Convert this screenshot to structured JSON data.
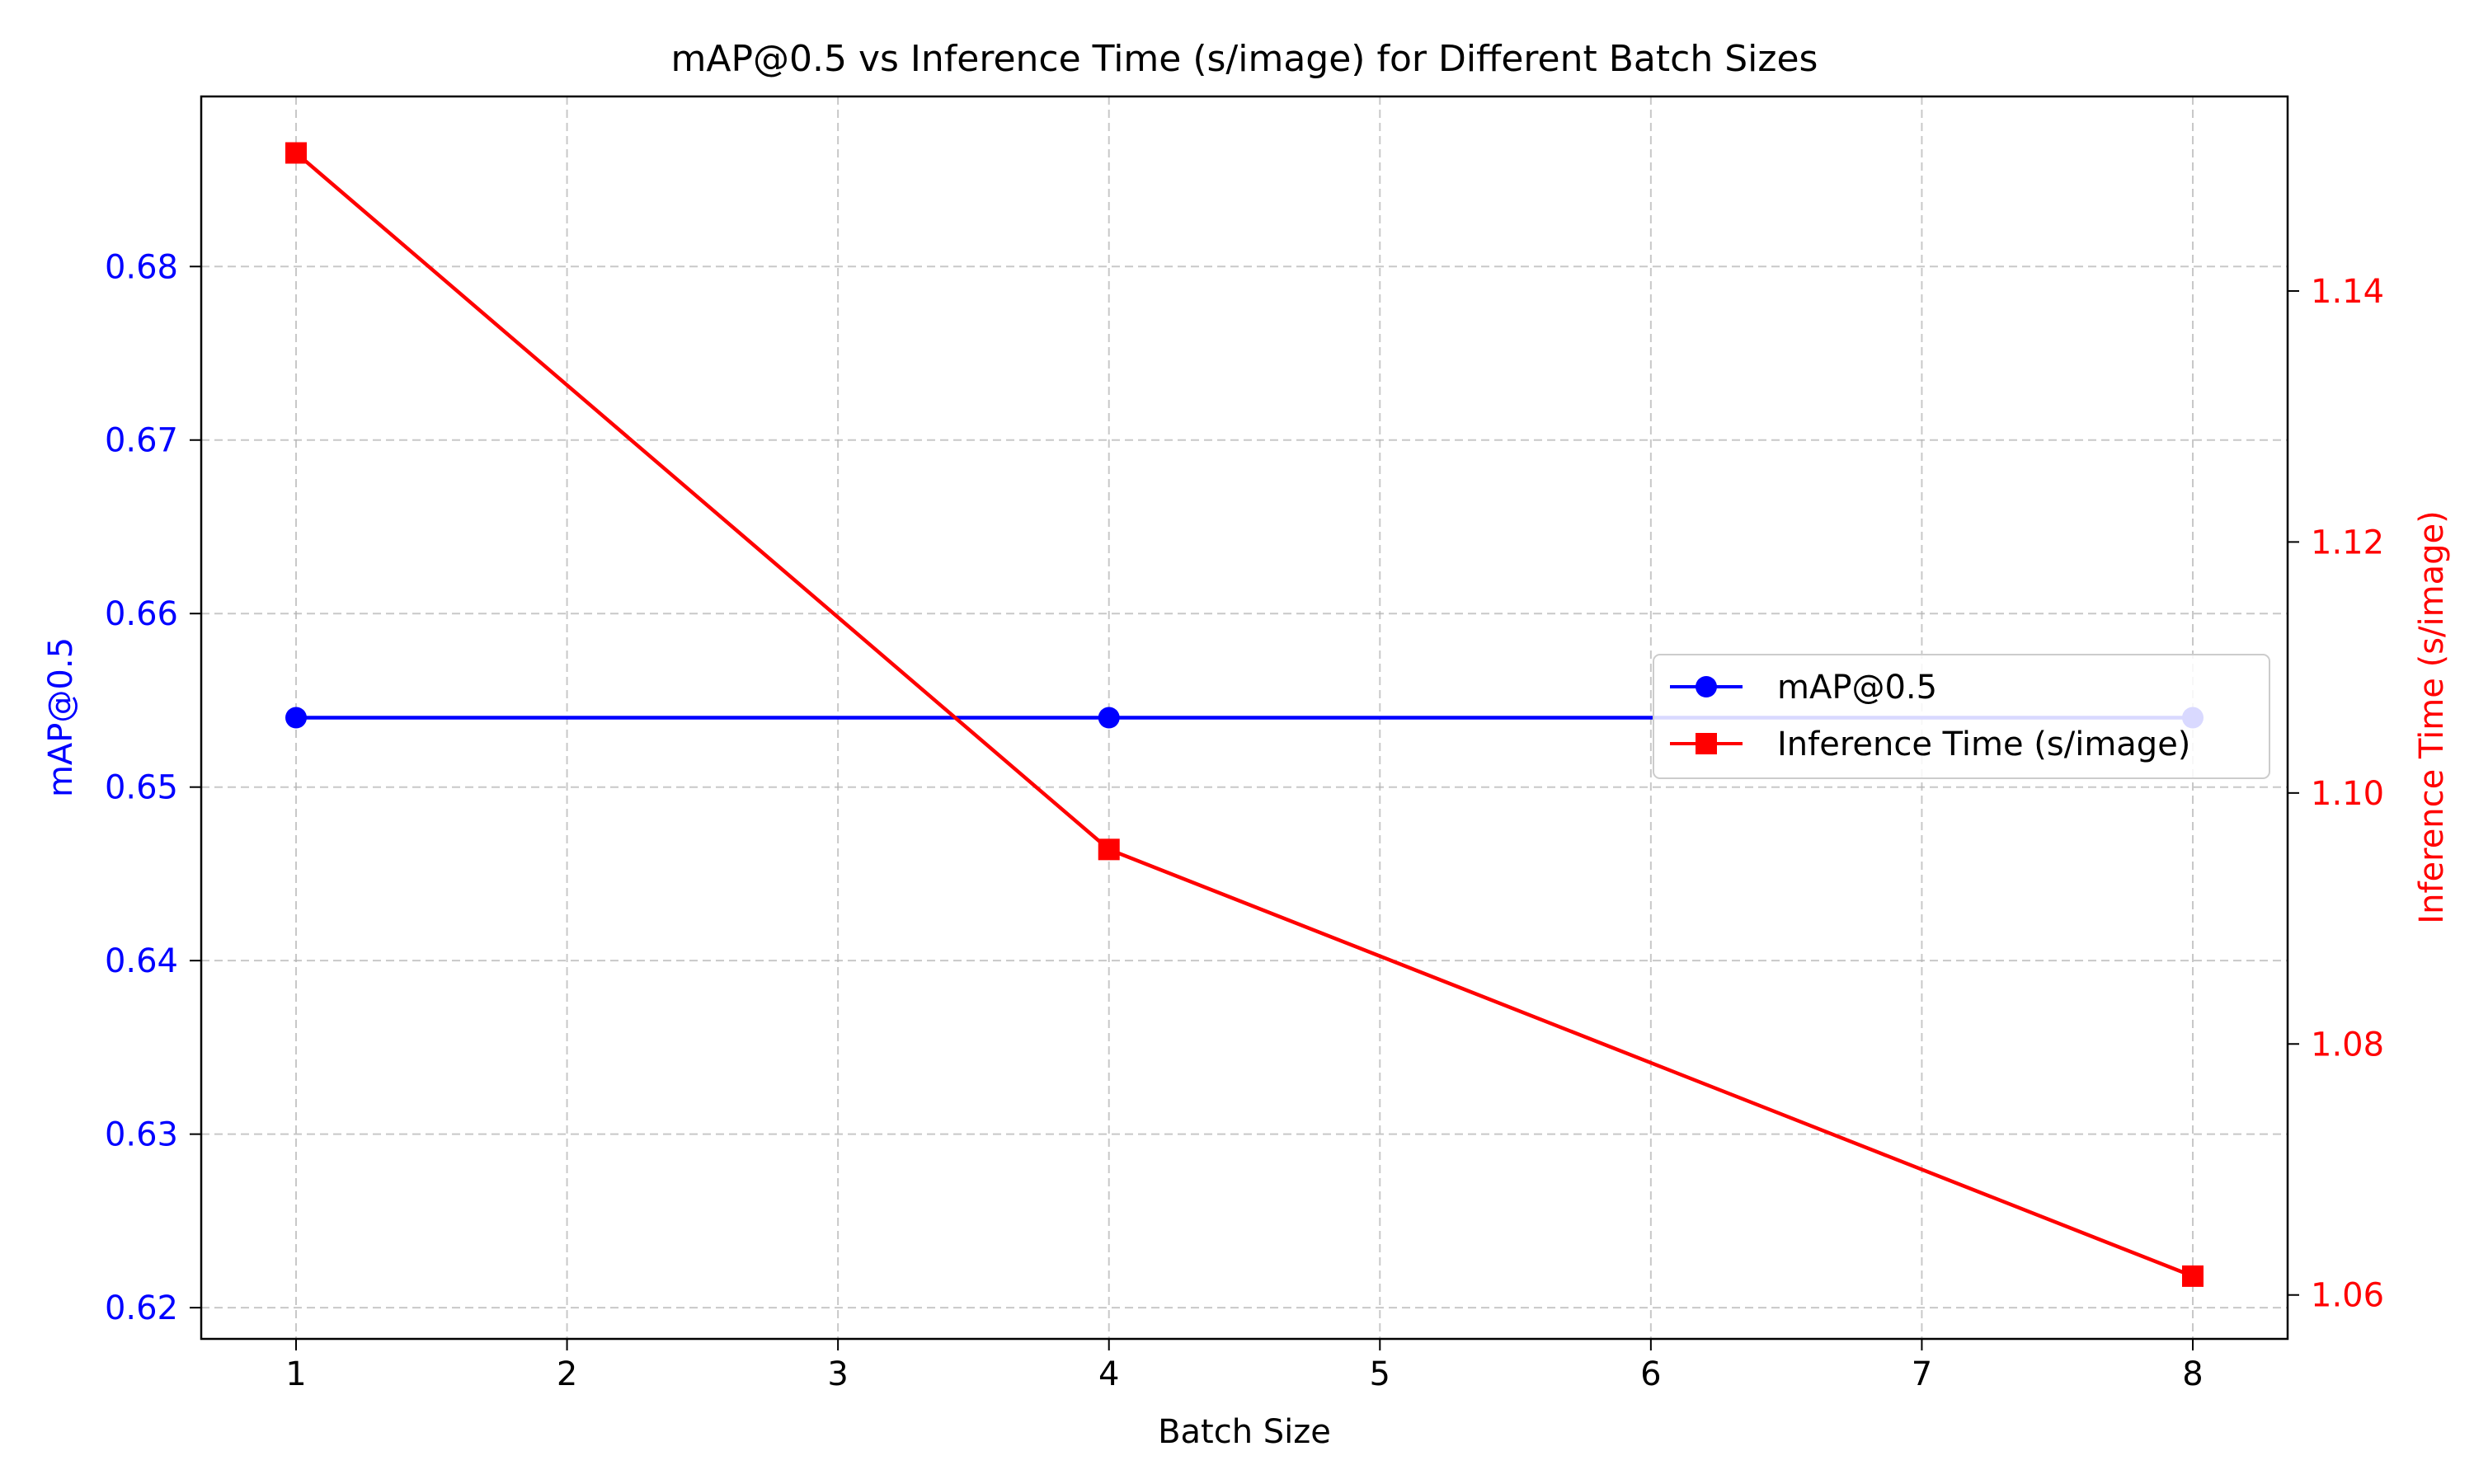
{
  "chart_data": {
    "type": "line",
    "title": "mAP@0.5 vs Inference Time (s/image) for Different Batch Sizes",
    "xlabel": "Batch Size",
    "ylabel_left": "mAP@0.5",
    "ylabel_right": "Inference Time (s/image)",
    "x": [
      1,
      4,
      8
    ],
    "xlim": [
      0.65,
      8.35
    ],
    "xticks": [
      1,
      2,
      3,
      4,
      5,
      6,
      7,
      8
    ],
    "ylim_left": [
      0.6182,
      0.6898
    ],
    "yticks_left": [
      0.62,
      0.63,
      0.64,
      0.65,
      0.66,
      0.67,
      0.68
    ],
    "ylim_right": [
      1.0565,
      1.1555
    ],
    "yticks_right": [
      1.06,
      1.08,
      1.1,
      1.12,
      1.14
    ],
    "grid": true,
    "legend_position": "center-right",
    "series": [
      {
        "name": "mAP@0.5",
        "axis": "left",
        "values": [
          0.654,
          0.654,
          0.654
        ],
        "color": "#0000ff",
        "marker": "circle"
      },
      {
        "name": "Inference Time (s/image)",
        "axis": "right",
        "values": [
          1.151,
          1.0955,
          1.0615
        ],
        "color": "#ff0000",
        "marker": "square"
      }
    ]
  }
}
